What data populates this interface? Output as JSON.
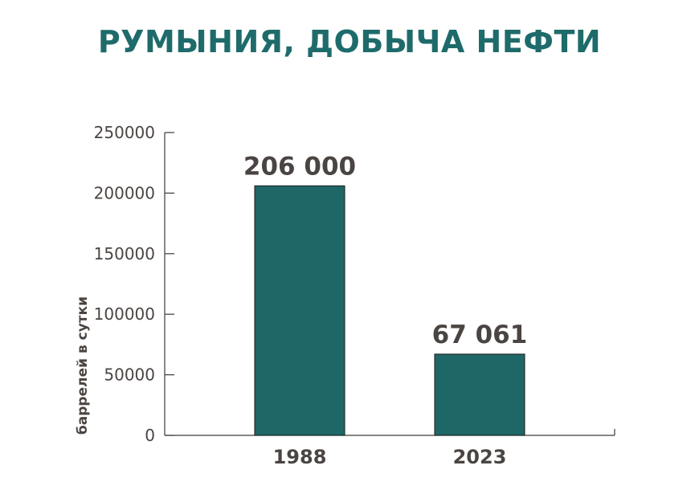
{
  "title": "РУМЫНИЯ, ДОБЫЧА НЕФТИ",
  "colors": {
    "title": "#1f6b6b",
    "bar": "#1e6766",
    "bar_stroke": "#1a1a1a",
    "text": "#4a4542",
    "axis": "#3c3c3c"
  },
  "chart_data": {
    "type": "bar",
    "title": "РУМЫНИЯ, ДОБЫЧА НЕФТИ",
    "xlabel": "",
    "ylabel": "баррелей в сутки",
    "categories": [
      "1988",
      "2023"
    ],
    "values": [
      206000,
      67061
    ],
    "data_labels": [
      "206 000",
      "67 061"
    ],
    "ylim": [
      0,
      250000
    ],
    "yticks": [
      0,
      50000,
      100000,
      150000,
      200000,
      250000
    ],
    "ytick_labels": [
      "0",
      "50000",
      "100000",
      "150000",
      "200000",
      "250000"
    ],
    "grid": false,
    "legend": "none"
  }
}
